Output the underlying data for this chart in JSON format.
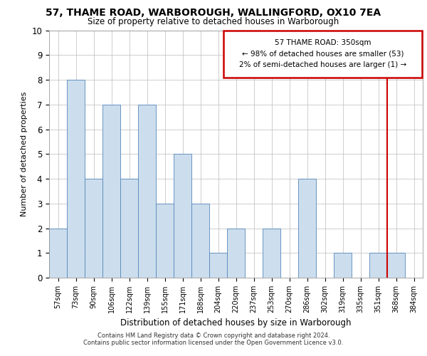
{
  "title_line1": "57, THAME ROAD, WARBOROUGH, WALLINGFORD, OX10 7EA",
  "title_line2": "Size of property relative to detached houses in Warborough",
  "xlabel": "Distribution of detached houses by size in Warborough",
  "ylabel": "Number of detached properties",
  "categories": [
    "57sqm",
    "73sqm",
    "90sqm",
    "106sqm",
    "122sqm",
    "139sqm",
    "155sqm",
    "171sqm",
    "188sqm",
    "204sqm",
    "220sqm",
    "237sqm",
    "253sqm",
    "270sqm",
    "286sqm",
    "302sqm",
    "319sqm",
    "335sqm",
    "351sqm",
    "368sqm",
    "384sqm"
  ],
  "bar_heights": [
    2,
    8,
    4,
    7,
    4,
    7,
    3,
    5,
    3,
    1,
    2,
    0,
    2,
    0,
    4,
    0,
    1,
    0,
    1,
    1,
    0
  ],
  "bar_color": "#ccdded",
  "bar_edge_color": "#5588bb",
  "ylim": [
    0,
    10
  ],
  "yticks": [
    0,
    1,
    2,
    3,
    4,
    5,
    6,
    7,
    8,
    9,
    10
  ],
  "annotation_text": "57 THAME ROAD: 350sqm\n← 98% of detached houses are smaller (53)\n2% of semi-detached houses are larger (1) →",
  "annotation_box_edge": "#cc0000",
  "vline_color": "#cc0000",
  "footer_line1": "Contains HM Land Registry data © Crown copyright and database right 2024.",
  "footer_line2": "Contains public sector information licensed under the Open Government Licence v3.0.",
  "bg_color": "#ffffff"
}
